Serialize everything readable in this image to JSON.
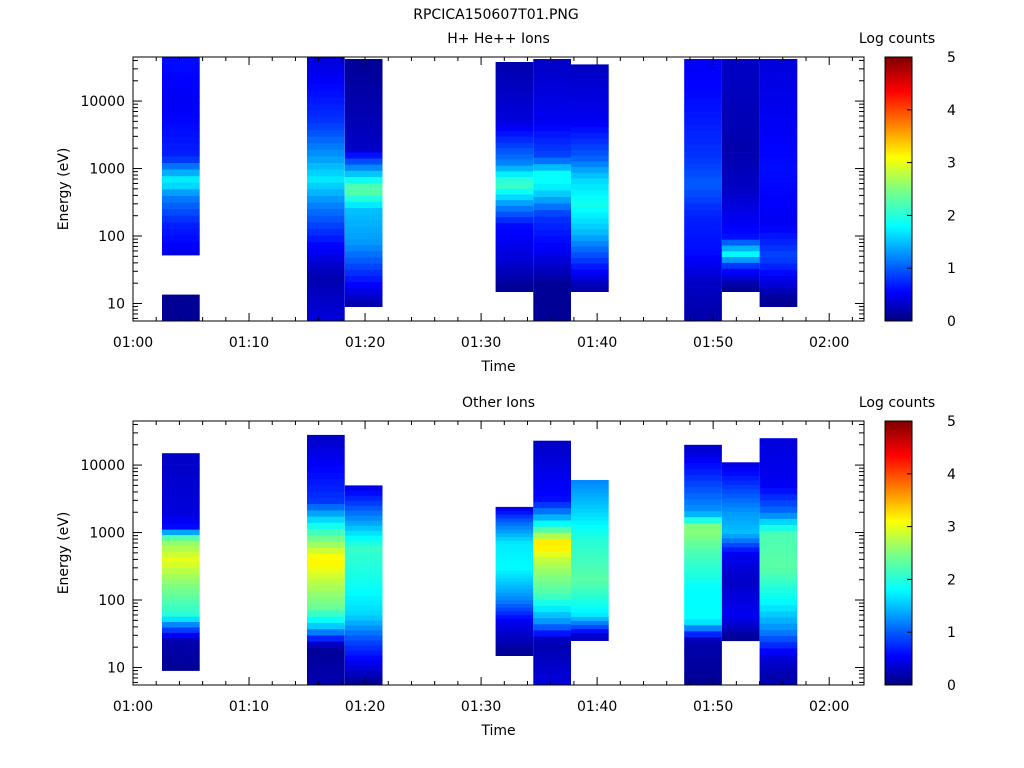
{
  "page_title": "RPCICA150607T01.PNG",
  "chart_data": [
    {
      "type": "heatmap",
      "title": "H+ He++ Ions",
      "xlabel": "Time",
      "ylabel": "Energy (eV)",
      "x_ticks": [
        "01:00",
        "01:10",
        "01:20",
        "01:30",
        "01:40",
        "01:50",
        "02:00"
      ],
      "xlim": [
        "01:00",
        "02:03"
      ],
      "y_scale": "log",
      "y_ticks": [
        10,
        100,
        1000,
        10000
      ],
      "ylim": [
        5.5,
        45000
      ],
      "colorbar": {
        "label": "Log counts",
        "range": [
          0,
          5
        ],
        "ticks": [
          0,
          1,
          2,
          3,
          4,
          5
        ]
      },
      "columns": [
        {
          "start": "01:02:30",
          "end": "01:05:45",
          "emin": 5.5,
          "emax": 45000,
          "profile": [
            {
              "e": 12,
              "v": 0.1
            },
            {
              "e": 30,
              "v": -1
            },
            {
              "e": 60,
              "v": 0.5
            },
            {
              "e": 150,
              "v": 0.7
            },
            {
              "e": 400,
              "v": 1.2
            },
            {
              "e": 650,
              "v": 1.8
            },
            {
              "e": 1500,
              "v": 0.7
            },
            {
              "e": 10000,
              "v": 0.5
            },
            {
              "e": 40000,
              "v": 0.6
            }
          ]
        },
        {
          "start": "01:15:00",
          "end": "01:18:15",
          "emin": 5.5,
          "emax": 45000,
          "profile": [
            {
              "e": 6,
              "v": 0.4
            },
            {
              "e": 25,
              "v": 0.2
            },
            {
              "e": 80,
              "v": 0.6
            },
            {
              "e": 300,
              "v": 1.2
            },
            {
              "e": 700,
              "v": 1.7
            },
            {
              "e": 1500,
              "v": 1.3
            },
            {
              "e": 5000,
              "v": 0.8
            },
            {
              "e": 40000,
              "v": 0.4
            }
          ]
        },
        {
          "start": "01:18:15",
          "end": "01:21:30",
          "emin": 9,
          "emax": 42000,
          "profile": [
            {
              "e": 10,
              "v": 0.2
            },
            {
              "e": 30,
              "v": 0.8
            },
            {
              "e": 80,
              "v": 1.3
            },
            {
              "e": 250,
              "v": 1.5
            },
            {
              "e": 500,
              "v": 2.4
            },
            {
              "e": 800,
              "v": 1.6
            },
            {
              "e": 2000,
              "v": 0.3
            },
            {
              "e": 40000,
              "v": 0.1
            }
          ]
        },
        {
          "start": "01:31:15",
          "end": "01:34:30",
          "emin": 15,
          "emax": 38000,
          "profile": [
            {
              "e": 18,
              "v": 0.1
            },
            {
              "e": 50,
              "v": 0.4
            },
            {
              "e": 150,
              "v": 0.6
            },
            {
              "e": 300,
              "v": 1.3
            },
            {
              "e": 600,
              "v": 2.2
            },
            {
              "e": 1200,
              "v": 1.2
            },
            {
              "e": 5000,
              "v": 0.4
            },
            {
              "e": 35000,
              "v": 0.2
            }
          ]
        },
        {
          "start": "01:34:30",
          "end": "01:37:45",
          "emin": 5.5,
          "emax": 42000,
          "profile": [
            {
              "e": 20,
              "v": 0.1
            },
            {
              "e": 60,
              "v": 0.5
            },
            {
              "e": 200,
              "v": 0.8
            },
            {
              "e": 500,
              "v": 1.7
            },
            {
              "e": 800,
              "v": 1.9
            },
            {
              "e": 1500,
              "v": 0.9
            },
            {
              "e": 5000,
              "v": 0.5
            },
            {
              "e": 40000,
              "v": 0.3
            }
          ]
        },
        {
          "start": "01:37:45",
          "end": "01:41:00",
          "emin": 15,
          "emax": 35000,
          "profile": [
            {
              "e": 18,
              "v": 0.2
            },
            {
              "e": 50,
              "v": 0.9
            },
            {
              "e": 120,
              "v": 1.5
            },
            {
              "e": 300,
              "v": 1.9
            },
            {
              "e": 700,
              "v": 1.6
            },
            {
              "e": 1500,
              "v": 1.0
            },
            {
              "e": 5000,
              "v": 0.5
            },
            {
              "e": 30000,
              "v": 0.3
            }
          ]
        },
        {
          "start": "01:47:30",
          "end": "01:50:45",
          "emin": 5.5,
          "emax": 42000,
          "profile": [
            {
              "e": 7,
              "v": 0.2
            },
            {
              "e": 20,
              "v": 0.3
            },
            {
              "e": 60,
              "v": 0.6
            },
            {
              "e": 200,
              "v": 0.7
            },
            {
              "e": 600,
              "v": 1.0
            },
            {
              "e": 1500,
              "v": 0.8
            },
            {
              "e": 10000,
              "v": 0.6
            },
            {
              "e": 40000,
              "v": 0.5
            }
          ]
        },
        {
          "start": "01:50:45",
          "end": "01:54:00",
          "emin": 15,
          "emax": 42000,
          "profile": [
            {
              "e": 18,
              "v": 0.1
            },
            {
              "e": 35,
              "v": 0.7
            },
            {
              "e": 55,
              "v": 1.8
            },
            {
              "e": 100,
              "v": 0.6
            },
            {
              "e": 500,
              "v": 0.3
            },
            {
              "e": 2000,
              "v": 0.2
            },
            {
              "e": 40000,
              "v": 0.3
            }
          ]
        },
        {
          "start": "01:54:00",
          "end": "01:57:15",
          "emin": 9,
          "emax": 42000,
          "profile": [
            {
              "e": 12,
              "v": 0.1
            },
            {
              "e": 50,
              "v": 0.9
            },
            {
              "e": 150,
              "v": 0.5
            },
            {
              "e": 1000,
              "v": 0.6
            },
            {
              "e": 5000,
              "v": 0.5
            },
            {
              "e": 40000,
              "v": 0.4
            }
          ]
        }
      ]
    },
    {
      "type": "heatmap",
      "title": "Other Ions",
      "xlabel": "Time",
      "ylabel": "Energy (eV)",
      "x_ticks": [
        "01:00",
        "01:10",
        "01:20",
        "01:30",
        "01:40",
        "01:50",
        "02:00"
      ],
      "xlim": [
        "01:00",
        "02:03"
      ],
      "y_scale": "log",
      "y_ticks": [
        10,
        100,
        1000,
        10000
      ],
      "ylim": [
        5.5,
        45000
      ],
      "colorbar": {
        "label": "Log counts",
        "range": [
          0,
          5
        ],
        "ticks": [
          0,
          1,
          2,
          3,
          4,
          5
        ]
      },
      "columns": [
        {
          "start": "01:02:30",
          "end": "01:05:45",
          "emin": 9,
          "emax": 15000,
          "profile": [
            {
              "e": 10,
              "v": 0.1
            },
            {
              "e": 25,
              "v": 0.2
            },
            {
              "e": 40,
              "v": 1.0
            },
            {
              "e": 60,
              "v": 2.0
            },
            {
              "e": 200,
              "v": 2.6
            },
            {
              "e": 400,
              "v": 3.0
            },
            {
              "e": 800,
              "v": 2.5
            },
            {
              "e": 1200,
              "v": 0.6
            },
            {
              "e": 2000,
              "v": 0.4
            },
            {
              "e": 15000,
              "v": 0.3
            }
          ]
        },
        {
          "start": "01:15:00",
          "end": "01:18:15",
          "emin": 5.5,
          "emax": 28000,
          "profile": [
            {
              "e": 6,
              "v": 0.2
            },
            {
              "e": 20,
              "v": 0.1
            },
            {
              "e": 40,
              "v": 1.5
            },
            {
              "e": 80,
              "v": 2.4
            },
            {
              "e": 200,
              "v": 2.8
            },
            {
              "e": 400,
              "v": 3.2
            },
            {
              "e": 1000,
              "v": 2.2
            },
            {
              "e": 3000,
              "v": 0.8
            },
            {
              "e": 28000,
              "v": 0.3
            }
          ]
        },
        {
          "start": "01:18:15",
          "end": "01:21:30",
          "emin": 5.5,
          "emax": 5000,
          "profile": [
            {
              "e": 6,
              "v": 0.1
            },
            {
              "e": 25,
              "v": 0.9
            },
            {
              "e": 60,
              "v": 1.6
            },
            {
              "e": 200,
              "v": 1.9
            },
            {
              "e": 600,
              "v": 2.1
            },
            {
              "e": 1500,
              "v": 1.3
            },
            {
              "e": 5000,
              "v": 0.4
            }
          ]
        },
        {
          "start": "01:31:15",
          "end": "01:34:30",
          "emin": 15,
          "emax": 2400,
          "profile": [
            {
              "e": 18,
              "v": 0.1
            },
            {
              "e": 50,
              "v": 0.5
            },
            {
              "e": 100,
              "v": 1.2
            },
            {
              "e": 300,
              "v": 1.8
            },
            {
              "e": 700,
              "v": 1.7
            },
            {
              "e": 1500,
              "v": 1.0
            },
            {
              "e": 2400,
              "v": 0.4
            }
          ]
        },
        {
          "start": "01:34:30",
          "end": "01:37:45",
          "emin": 5.5,
          "emax": 23000,
          "profile": [
            {
              "e": 6,
              "v": 0.4
            },
            {
              "e": 25,
              "v": 0.2
            },
            {
              "e": 45,
              "v": 1.2
            },
            {
              "e": 120,
              "v": 2.2
            },
            {
              "e": 400,
              "v": 2.8
            },
            {
              "e": 700,
              "v": 3.3
            },
            {
              "e": 1500,
              "v": 1.6
            },
            {
              "e": 3000,
              "v": 0.6
            },
            {
              "e": 23000,
              "v": 0.3
            }
          ]
        },
        {
          "start": "01:37:45",
          "end": "01:41:00",
          "emin": 25,
          "emax": 6000,
          "profile": [
            {
              "e": 30,
              "v": 0.3
            },
            {
              "e": 60,
              "v": 1.7
            },
            {
              "e": 200,
              "v": 2.3
            },
            {
              "e": 800,
              "v": 2.0
            },
            {
              "e": 2000,
              "v": 1.6
            },
            {
              "e": 6000,
              "v": 1.2
            }
          ]
        },
        {
          "start": "01:47:30",
          "end": "01:50:45",
          "emin": 5.5,
          "emax": 20000,
          "profile": [
            {
              "e": 7,
              "v": 0.1
            },
            {
              "e": 25,
              "v": 0.2
            },
            {
              "e": 50,
              "v": 1.8
            },
            {
              "e": 150,
              "v": 1.8
            },
            {
              "e": 500,
              "v": 2.2
            },
            {
              "e": 1200,
              "v": 2.6
            },
            {
              "e": 2000,
              "v": 1.3
            },
            {
              "e": 20000,
              "v": 0.3
            }
          ]
        },
        {
          "start": "01:50:45",
          "end": "01:54:00",
          "emin": 25,
          "emax": 11000,
          "profile": [
            {
              "e": 28,
              "v": 0.1
            },
            {
              "e": 60,
              "v": 0.5
            },
            {
              "e": 200,
              "v": 0.3
            },
            {
              "e": 500,
              "v": 0.5
            },
            {
              "e": 1000,
              "v": 1.5
            },
            {
              "e": 2000,
              "v": 1.3
            },
            {
              "e": 11000,
              "v": 0.4
            }
          ]
        },
        {
          "start": "01:54:00",
          "end": "01:57:15",
          "emin": 5.5,
          "emax": 25000,
          "profile": [
            {
              "e": 8,
              "v": 0.2
            },
            {
              "e": 15,
              "v": 0.4
            },
            {
              "e": 35,
              "v": 1.2
            },
            {
              "e": 80,
              "v": 1.7
            },
            {
              "e": 300,
              "v": 2.3
            },
            {
              "e": 1000,
              "v": 2.2
            },
            {
              "e": 2000,
              "v": 1.1
            },
            {
              "e": 5000,
              "v": 0.5
            },
            {
              "e": 25000,
              "v": 0.4
            }
          ]
        }
      ]
    }
  ]
}
